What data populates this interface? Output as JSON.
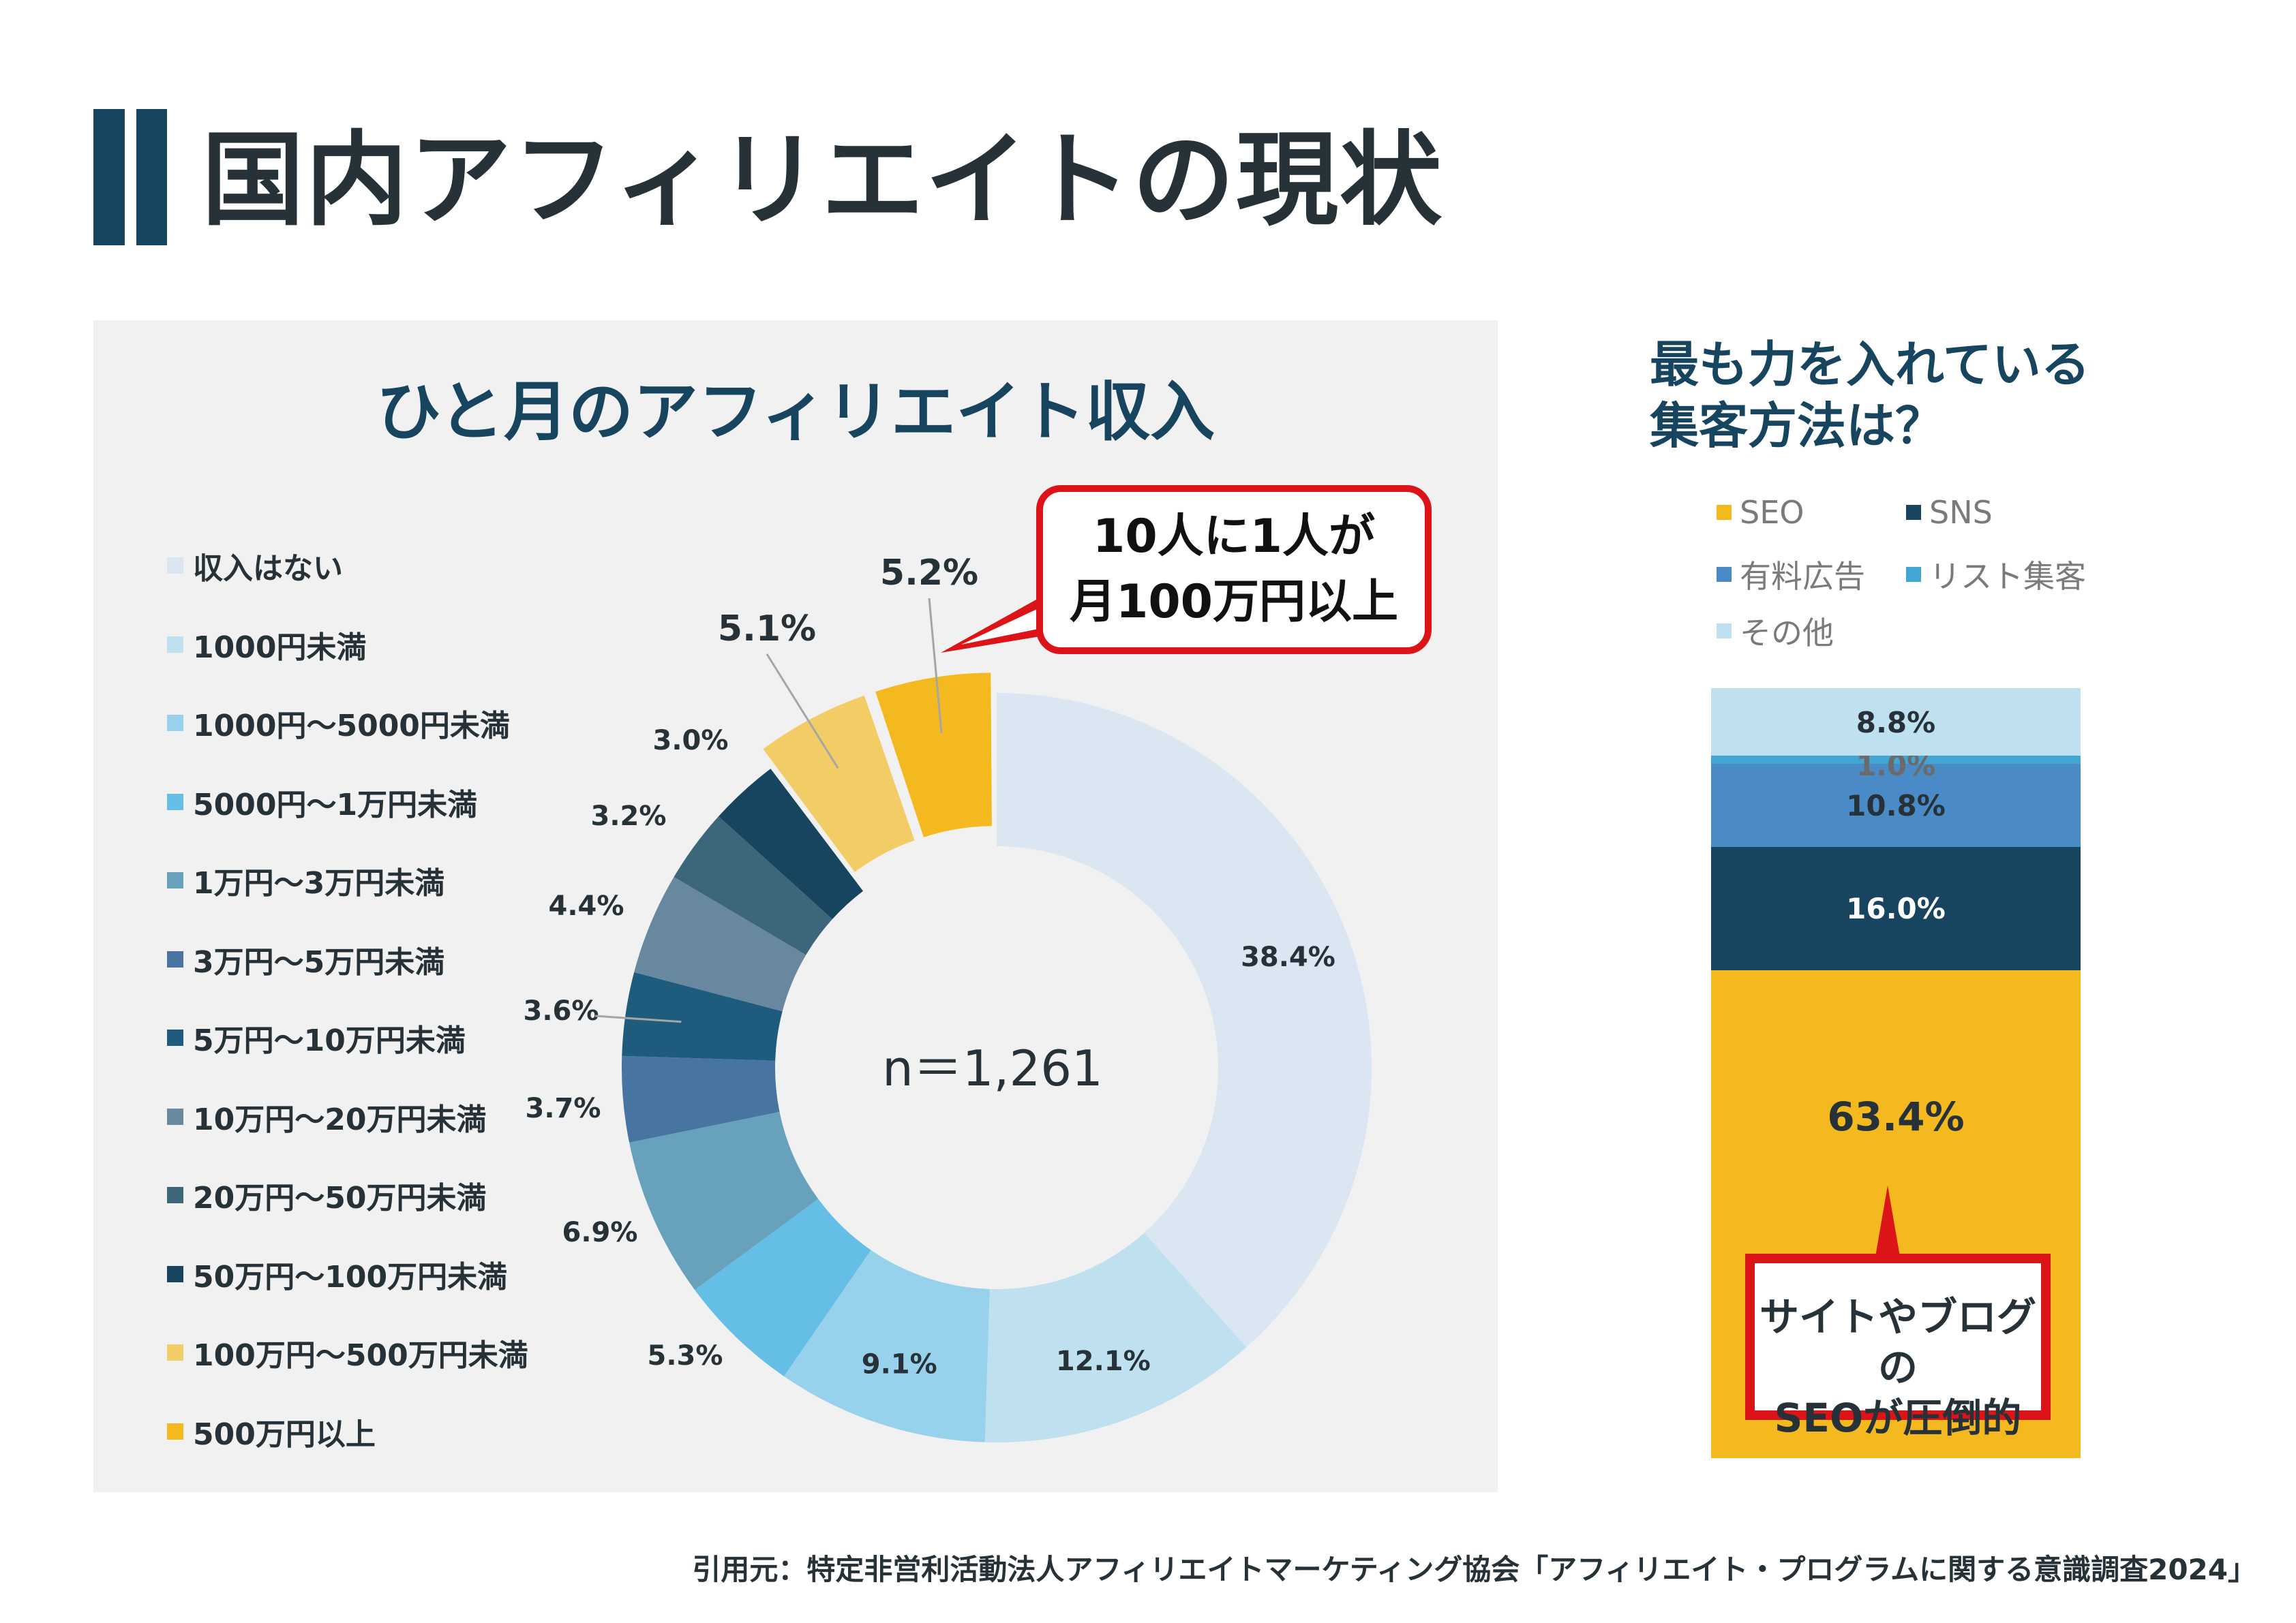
{
  "page": {
    "title": "国内アフィリエイトの現状",
    "citation": "引用元：特定非営利活動法人アフィリエイトマーケティング協会「アフィリエイト・プログラムに関する意識調査2024」"
  },
  "income_panel": {
    "title": "ひと月のアフィリエイト収入",
    "center_label": "n＝1,261",
    "callout": {
      "line1": "10人に1人が",
      "line2": "月100万円以上"
    }
  },
  "method_panel": {
    "title_line1": "最も力を入れている",
    "title_line2": "集客方法は？",
    "callout": {
      "line1": "サイトやブログの",
      "line2": "SEOが圧倒的"
    }
  },
  "colors": {
    "accent_navy": "#17455f",
    "callout_red": "#dc1418",
    "text_dark": "#263238"
  },
  "chart_data": [
    {
      "type": "pie",
      "subtype": "donut",
      "title": "ひと月のアフィリエイト収入",
      "center_text": "n＝1,261",
      "unit": "%",
      "legend_position": "left",
      "categories": [
        "収入はない",
        "1000円未満",
        "1000円～5000円未満",
        "5000円～1万円未満",
        "1万円～3万円未満",
        "3万円～5万円未満",
        "5万円～10万円未満",
        "10万円～20万円未満",
        "20万円～50万円未満",
        "50万円～100万円未満",
        "100万円～500万円未満",
        "500万円以上"
      ],
      "values": [
        38.4,
        12.1,
        9.1,
        5.3,
        6.9,
        3.7,
        3.6,
        4.4,
        3.2,
        3.0,
        5.1,
        5.2
      ],
      "labels": [
        "38.4%",
        "12.1%",
        "9.1%",
        "5.3%",
        "6.9%",
        "3.7%",
        "3.6%",
        "4.4%",
        "3.2%",
        "3.0%",
        "5.1%",
        "5.2%"
      ],
      "colors": [
        "#dae6f2",
        "#bfe0ef",
        "#98d1eb",
        "#64bee6",
        "#67a1bb",
        "#4774a0",
        "#1e5b7c",
        "#6888a0",
        "#3c6679",
        "#17455f",
        "#f2cd66",
        "#f3b91e"
      ],
      "exploded": [
        false,
        false,
        false,
        false,
        false,
        false,
        false,
        false,
        false,
        false,
        true,
        true
      ]
    },
    {
      "type": "bar",
      "subtype": "stacked-100",
      "title": "最も力を入れている集客方法は？",
      "unit": "%",
      "legend_position": "top",
      "series": [
        {
          "name": "SEO",
          "value": 63.4,
          "label": "63.4%",
          "color": "#f3b91e",
          "label_color": "#263238"
        },
        {
          "name": "SNS",
          "value": 16.0,
          "label": "16.0%",
          "color": "#17455f",
          "label_color": "#ffffff"
        },
        {
          "name": "有料広告",
          "value": 10.8,
          "label": "10.8%",
          "color": "#4a8ac6",
          "label_color": "#263238"
        },
        {
          "name": "リスト集客",
          "value": 1.0,
          "label": "1.0%",
          "color": "#42a6d4",
          "label_color": "#6b6b6b"
        },
        {
          "name": "その他",
          "value": 8.8,
          "label": "8.8%",
          "color": "#bfe0ef",
          "label_color": "#263238"
        }
      ]
    }
  ]
}
